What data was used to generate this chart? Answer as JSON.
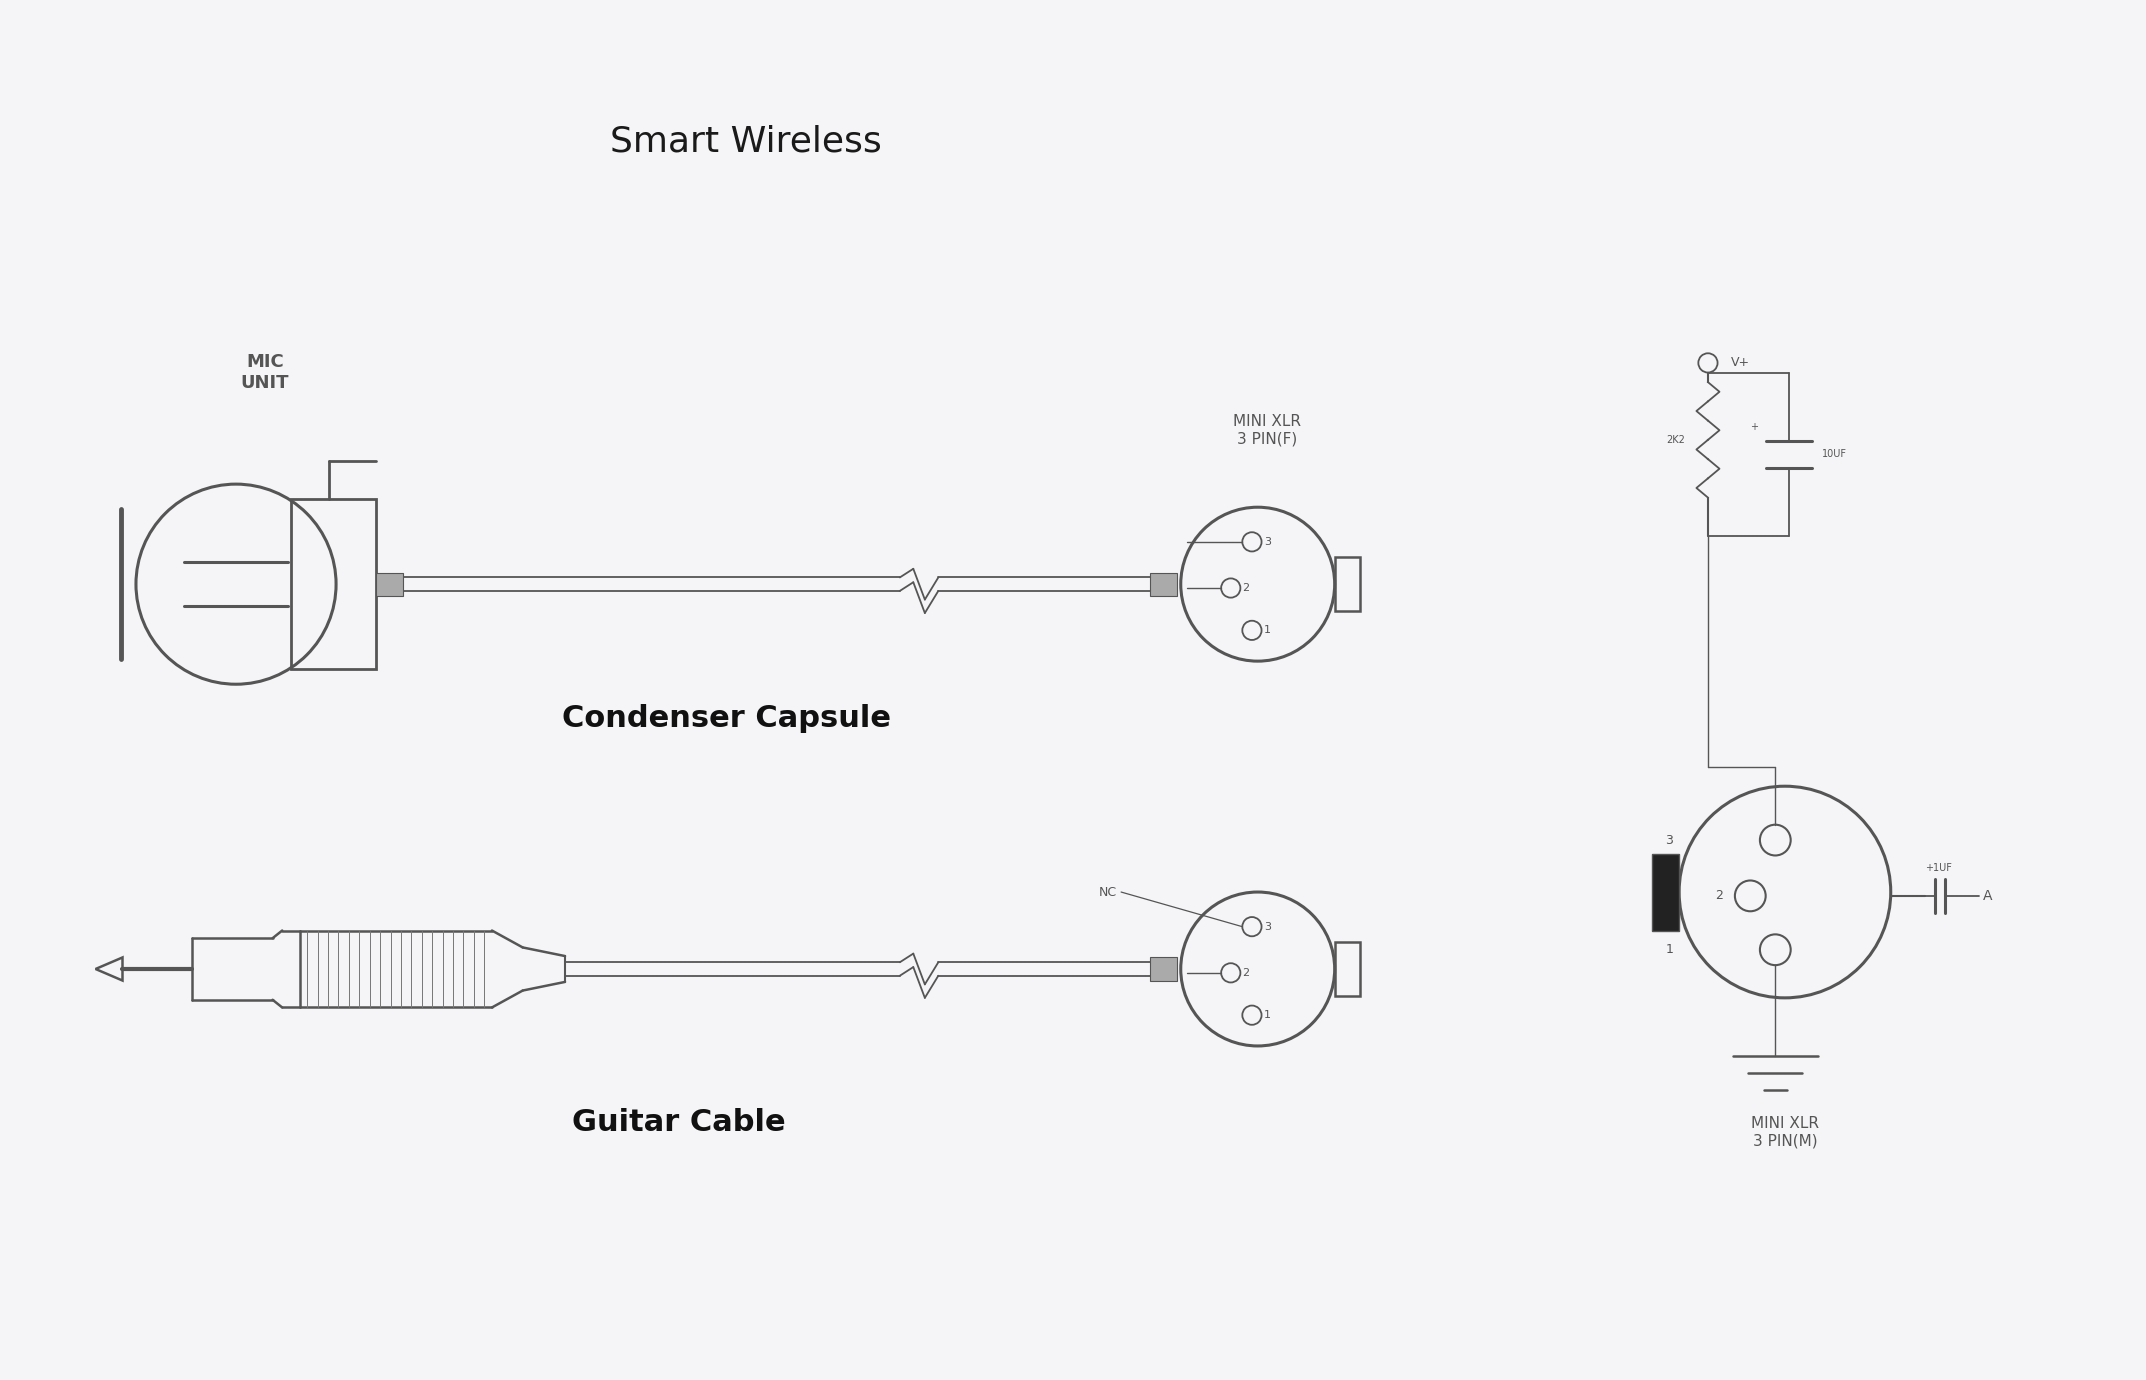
{
  "bg_color": "#f5f5f8",
  "line_color": "#555555",
  "title": "Smart Wireless",
  "title_fontsize": 26,
  "mic_unit_label": "MIC\nUNIT",
  "condenser_label": "Condenser Capsule",
  "condenser_fontsize": 22,
  "guitar_label": "Guitar Cable",
  "guitar_fontsize": 22,
  "mini_xlr_top_label": "MINI XLR\n3 PIN(F)",
  "mini_xlr_bot_label": "MINI XLR\n3 PIN(M)",
  "xlr_label_fontsize": 11
}
